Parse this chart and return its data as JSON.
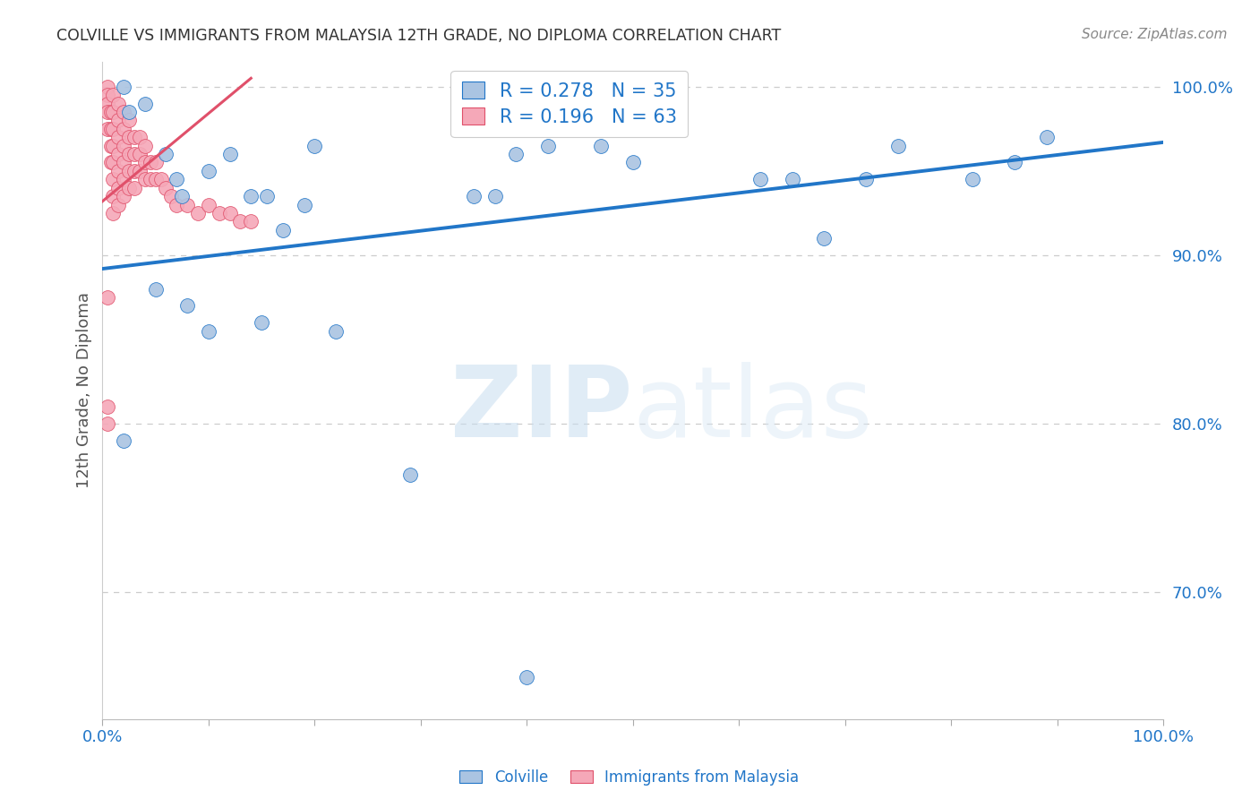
{
  "title": "COLVILLE VS IMMIGRANTS FROM MALAYSIA 12TH GRADE, NO DIPLOMA CORRELATION CHART",
  "source": "Source: ZipAtlas.com",
  "ylabel": "12th Grade, No Diploma",
  "xlabel": "",
  "xlim": [
    0.0,
    1.0
  ],
  "ylim": [
    0.625,
    1.015
  ],
  "yticks": [
    0.7,
    0.8,
    0.9,
    1.0
  ],
  "ytick_labels": [
    "70.0%",
    "80.0%",
    "90.0%",
    "100.0%"
  ],
  "colville_R": 0.278,
  "colville_N": 35,
  "malaysia_R": 0.196,
  "malaysia_N": 63,
  "colville_color": "#aac4e2",
  "colville_line_color": "#2176c8",
  "malaysia_color": "#f5a8b8",
  "malaysia_line_color": "#e0506a",
  "colville_points_x": [
    0.02,
    0.025,
    0.04,
    0.06,
    0.07,
    0.075,
    0.1,
    0.12,
    0.14,
    0.155,
    0.17,
    0.19,
    0.2,
    0.35,
    0.37,
    0.39,
    0.42,
    0.47,
    0.5,
    0.62,
    0.65,
    0.68,
    0.72,
    0.75,
    0.82,
    0.86,
    0.89,
    0.02,
    0.05,
    0.08,
    0.1,
    0.15,
    0.22,
    0.29,
    0.4
  ],
  "colville_points_y": [
    1.0,
    0.985,
    0.99,
    0.96,
    0.945,
    0.935,
    0.95,
    0.96,
    0.935,
    0.935,
    0.915,
    0.93,
    0.965,
    0.935,
    0.935,
    0.96,
    0.965,
    0.965,
    0.955,
    0.945,
    0.945,
    0.91,
    0.945,
    0.965,
    0.945,
    0.955,
    0.97,
    0.79,
    0.88,
    0.87,
    0.855,
    0.86,
    0.855,
    0.77,
    0.65
  ],
  "malaysia_points_x": [
    0.005,
    0.005,
    0.005,
    0.005,
    0.005,
    0.008,
    0.008,
    0.008,
    0.008,
    0.01,
    0.01,
    0.01,
    0.01,
    0.01,
    0.01,
    0.01,
    0.01,
    0.015,
    0.015,
    0.015,
    0.015,
    0.015,
    0.015,
    0.015,
    0.02,
    0.02,
    0.02,
    0.02,
    0.02,
    0.02,
    0.025,
    0.025,
    0.025,
    0.025,
    0.025,
    0.03,
    0.03,
    0.03,
    0.03,
    0.035,
    0.035,
    0.035,
    0.04,
    0.04,
    0.04,
    0.045,
    0.045,
    0.05,
    0.05,
    0.055,
    0.06,
    0.065,
    0.07,
    0.08,
    0.09,
    0.1,
    0.11,
    0.12,
    0.13,
    0.14,
    0.005,
    0.005,
    0.005
  ],
  "malaysia_points_y": [
    1.0,
    0.995,
    0.99,
    0.985,
    0.975,
    0.985,
    0.975,
    0.965,
    0.955,
    0.995,
    0.985,
    0.975,
    0.965,
    0.955,
    0.945,
    0.935,
    0.925,
    0.99,
    0.98,
    0.97,
    0.96,
    0.95,
    0.94,
    0.93,
    0.985,
    0.975,
    0.965,
    0.955,
    0.945,
    0.935,
    0.98,
    0.97,
    0.96,
    0.95,
    0.94,
    0.97,
    0.96,
    0.95,
    0.94,
    0.97,
    0.96,
    0.95,
    0.965,
    0.955,
    0.945,
    0.955,
    0.945,
    0.955,
    0.945,
    0.945,
    0.94,
    0.935,
    0.93,
    0.93,
    0.925,
    0.93,
    0.925,
    0.925,
    0.92,
    0.92,
    0.875,
    0.81,
    0.8
  ],
  "colville_line_x": [
    0.0,
    1.0
  ],
  "colville_line_y": [
    0.892,
    0.967
  ],
  "malaysia_line_x": [
    0.0,
    0.14
  ],
  "malaysia_line_y": [
    0.932,
    1.005
  ],
  "watermark_zip": "ZIP",
  "watermark_atlas": "atlas",
  "background_color": "#ffffff",
  "grid_color": "#cccccc",
  "text_color": "#2176c8",
  "title_color": "#333333",
  "ylabel_color": "#555555"
}
